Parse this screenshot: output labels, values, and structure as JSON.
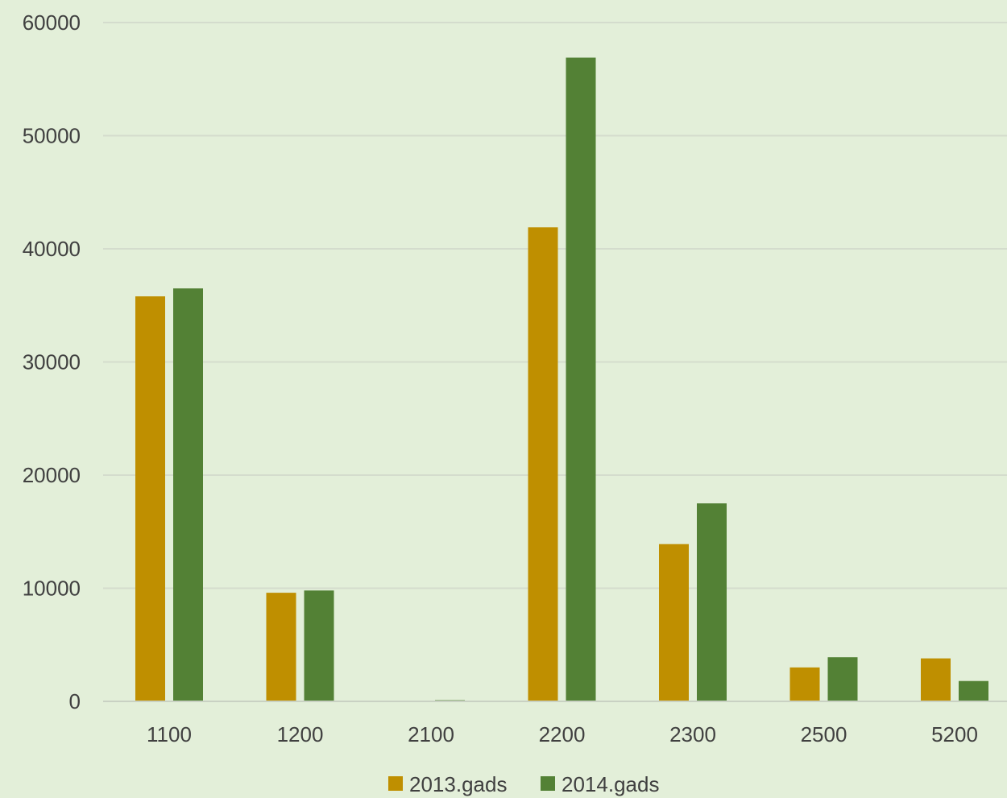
{
  "chart_data": {
    "type": "bar",
    "categories": [
      "1100",
      "1200",
      "2100",
      "2200",
      "2300",
      "2500",
      "5200"
    ],
    "series": [
      {
        "name": "2013.gads",
        "color": "#bf8f00",
        "values": [
          35800,
          9600,
          0,
          41900,
          13900,
          3000,
          3800
        ]
      },
      {
        "name": "2014.gads",
        "color": "#538135",
        "values": [
          36500,
          9800,
          100,
          56900,
          17500,
          3900,
          1800
        ]
      }
    ],
    "ylim": [
      0,
      60000
    ],
    "y_ticks": [
      "0",
      "10000",
      "20000",
      "30000",
      "40000",
      "50000",
      "60000"
    ],
    "grid": true,
    "legend_position": "bottom",
    "title": "",
    "xlabel": "",
    "ylabel": ""
  },
  "colors": {
    "background": "#e3efd9",
    "gridline": "#d4dccd",
    "axis": "#c9d1c3",
    "text": "#404040"
  }
}
